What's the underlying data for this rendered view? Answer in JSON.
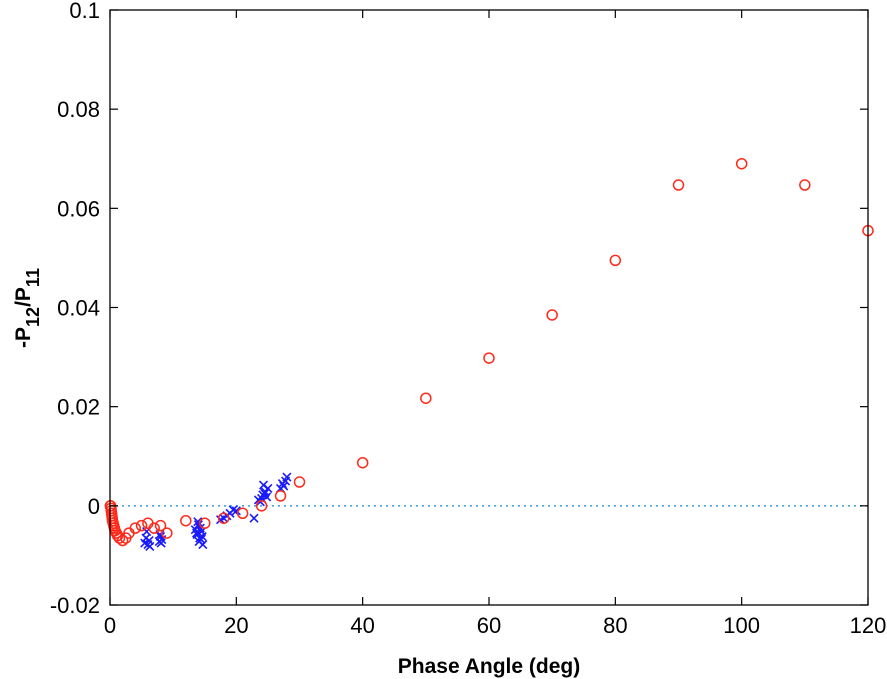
{
  "colors": {
    "series_circles": "#ff2a1a",
    "series_crosses": "#1a1aff",
    "reference_line": "#3a9ad9",
    "axis": "#000000"
  },
  "chart_data": {
    "type": "scatter",
    "title": "",
    "xlabel": "Phase Angle (deg)",
    "ylabel": {
      "prefix": "-P",
      "sub1": "12",
      "mid": "/P",
      "sub2": "11"
    },
    "xlim": [
      0,
      120
    ],
    "ylim": [
      -0.02,
      0.1
    ],
    "xticks": [
      0,
      20,
      40,
      60,
      80,
      100,
      120
    ],
    "yticks": [
      -0.02,
      0,
      0.02,
      0.04,
      0.06,
      0.08,
      0.1
    ],
    "xtick_labels": [
      "0",
      "20",
      "40",
      "60",
      "80",
      "100",
      "120"
    ],
    "ytick_labels": [
      "-0.02",
      "0",
      "0.02",
      "0.04",
      "0.06",
      "0.08",
      "0.1"
    ],
    "grid": false,
    "box": true,
    "reference_line": {
      "y": 0,
      "style": "dotted"
    },
    "series": [
      {
        "name": "circles",
        "marker": "circle",
        "x": [
          0.05,
          0.1,
          0.15,
          0.2,
          0.25,
          0.3,
          0.35,
          0.4,
          0.5,
          0.6,
          0.7,
          0.8,
          1.0,
          1.2,
          1.5,
          2.0,
          2.5,
          3.0,
          4.0,
          5.0,
          6.0,
          7.0,
          8.0,
          9.0,
          12.0,
          15.0,
          18.0,
          21.0,
          24.0,
          27.0,
          30.0,
          40.0,
          50.0,
          60.0,
          70.0,
          80.0,
          90.0,
          100.0,
          110.0,
          120.0
        ],
        "y": [
          0.0,
          0.0,
          -0.0005,
          -0.001,
          -0.0015,
          -0.002,
          -0.0025,
          -0.003,
          -0.0035,
          -0.004,
          -0.0045,
          -0.005,
          -0.0055,
          -0.006,
          -0.0065,
          -0.007,
          -0.0065,
          -0.0055,
          -0.0045,
          -0.004,
          -0.0035,
          -0.0045,
          -0.004,
          -0.0055,
          -0.003,
          -0.0035,
          -0.0025,
          -0.0015,
          0.0,
          0.002,
          0.0048,
          0.0087,
          0.0217,
          0.0298,
          0.0385,
          0.0495,
          0.0647,
          0.069,
          0.0647,
          0.0555
        ]
      },
      {
        "name": "crosses",
        "marker": "x",
        "x": [
          5.5,
          5.7,
          6.0,
          6.2,
          5.8,
          6.3,
          7.8,
          8.0,
          8.2,
          7.9,
          8.1,
          13.5,
          13.8,
          14.0,
          14.2,
          14.5,
          14.7,
          13.9,
          14.3,
          14.6,
          13.7,
          14.1,
          14.4,
          17.5,
          18.0,
          18.5,
          19.0,
          19.5,
          20.0,
          22.8,
          23.5,
          23.8,
          24.0,
          24.2,
          24.5,
          24.8,
          25.0,
          24.3,
          24.6,
          27.0,
          27.3,
          27.5,
          27.8,
          28.0
        ],
        "y": [
          -0.0075,
          -0.0065,
          -0.0078,
          -0.007,
          -0.0052,
          -0.0082,
          -0.0072,
          -0.0062,
          -0.0068,
          -0.0058,
          -0.0075,
          -0.0048,
          -0.0058,
          -0.0038,
          -0.0065,
          -0.0052,
          -0.0078,
          -0.0032,
          -0.0045,
          -0.0062,
          -0.0055,
          -0.0072,
          -0.0068,
          -0.0028,
          -0.0025,
          -0.002,
          -0.0015,
          -0.0008,
          -0.001,
          -0.0025,
          0.0012,
          0.0008,
          0.0015,
          0.0022,
          0.0025,
          0.0018,
          0.0035,
          0.0042,
          0.0028,
          0.0035,
          0.0045,
          0.004,
          0.005,
          0.0058
        ]
      }
    ]
  }
}
